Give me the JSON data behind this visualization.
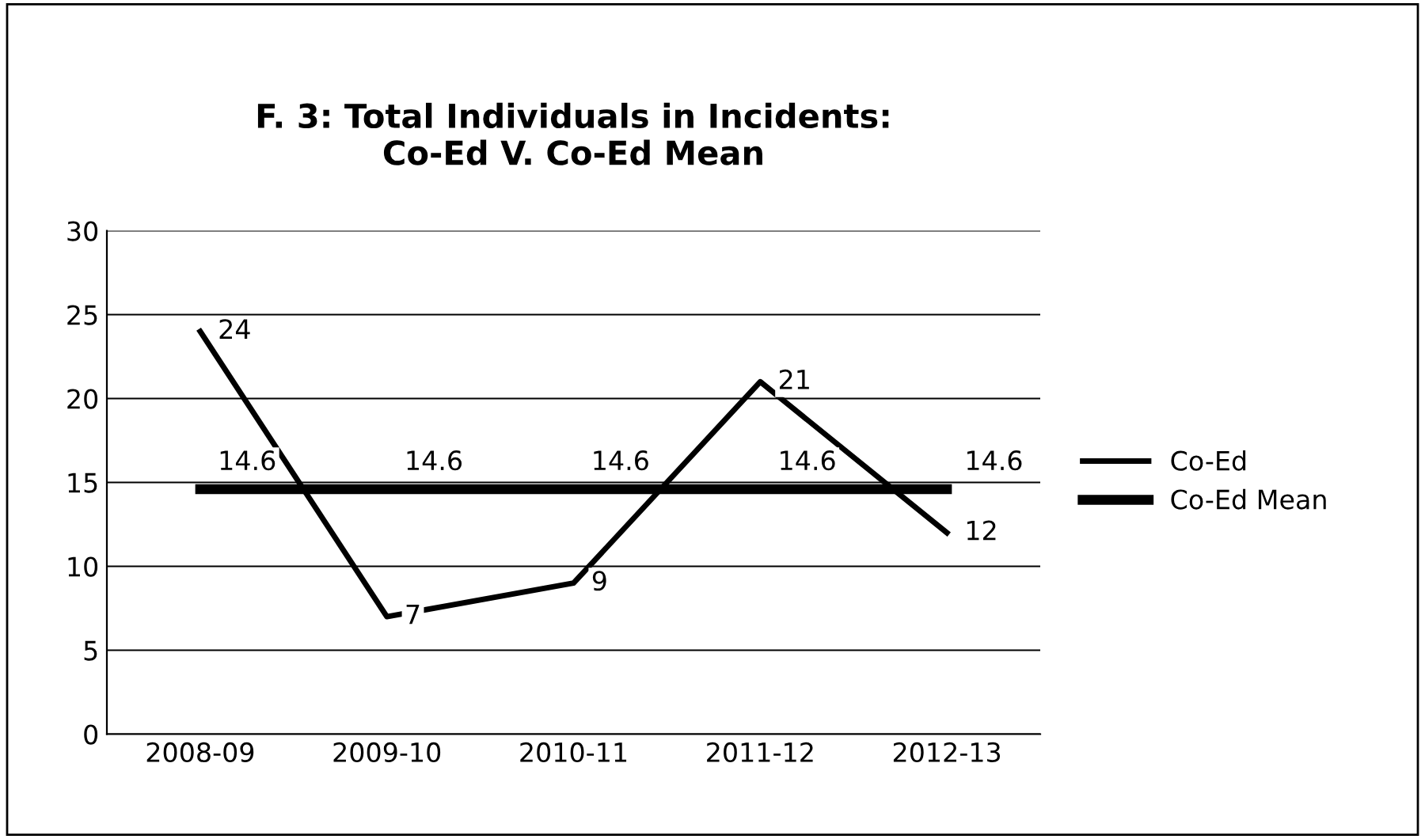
{
  "chart_data": {
    "type": "line",
    "title": "F. 3: Total Individuals in Incidents:\nCo-Ed V. Co-Ed Mean",
    "categories": [
      "2008-09",
      "2009-10",
      "2010-11",
      "2011-12",
      "2012-13"
    ],
    "series": [
      {
        "name": "Co-Ed",
        "color": "#000000",
        "values": [
          24,
          7,
          9,
          21,
          12
        ]
      },
      {
        "name": "Co-Ed Mean",
        "color": "#000000",
        "values": [
          14.6,
          14.6,
          14.6,
          14.6,
          14.6
        ]
      }
    ],
    "ylim": [
      0,
      30
    ],
    "yticks": [
      0,
      5,
      10,
      15,
      20,
      25,
      30
    ],
    "grid": "y",
    "legend": "right",
    "data_labels": true,
    "marker": "none",
    "line_style": "solid"
  }
}
